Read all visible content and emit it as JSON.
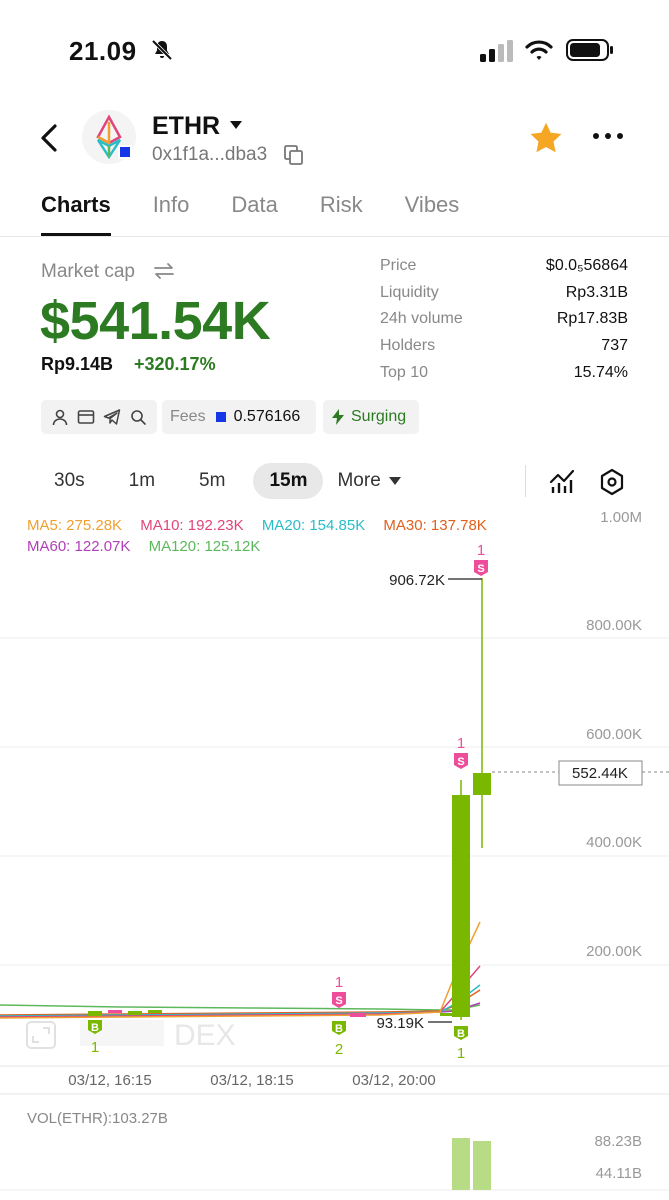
{
  "status": {
    "time": "21.09",
    "icons": [
      "bell-off-icon",
      "signal-icon",
      "wifi-icon",
      "battery-icon"
    ]
  },
  "header": {
    "token_name": "ETHR",
    "address": "0x1f1a...dba3",
    "favorite_color": "#f5a623"
  },
  "tabs": [
    {
      "label": "Charts",
      "active": true
    },
    {
      "label": "Info"
    },
    {
      "label": "Data"
    },
    {
      "label": "Risk"
    },
    {
      "label": "Vibes"
    }
  ],
  "market": {
    "label": "Market cap",
    "value": "$541.54K",
    "idr": "Rp9.14B",
    "change": "+320.17%",
    "accent": "#2c7a21"
  },
  "stats": [
    {
      "label": "Price",
      "value": "$0.0₅56864"
    },
    {
      "label": "Liquidity",
      "value": "Rp3.31B"
    },
    {
      "label": "24h volume",
      "value": "Rp17.83B"
    },
    {
      "label": "Holders",
      "value": "737"
    },
    {
      "label": "Top 10",
      "value": "15.74%"
    }
  ],
  "fees": {
    "label": "Fees",
    "value": "0.576166"
  },
  "surging": {
    "label": "Surging"
  },
  "intervals": [
    "30s",
    "1m",
    "5m",
    "15m"
  ],
  "active_interval": "15m",
  "more_label": "More",
  "ma": [
    {
      "label": "MA5: 275.28K",
      "color": "#f0a030"
    },
    {
      "label": "MA10: 192.23K",
      "color": "#e0457b"
    },
    {
      "label": "MA20: 154.85K",
      "color": "#2bbcc8"
    },
    {
      "label": "MA30: 137.78K",
      "color": "#e0601e"
    },
    {
      "label": "MA60: 122.07K",
      "color": "#b040b8"
    },
    {
      "label": "MA120: 125.12K",
      "color": "#5cb85c"
    }
  ],
  "chart_data": {
    "type": "candlestick",
    "y_ticks": [
      "1.00M",
      "800.00K",
      "600.00K",
      "400.00K",
      "200.00K"
    ],
    "x_ticks": [
      "03/12, 16:15",
      "03/12, 18:15",
      "03/12, 20:00"
    ],
    "high_label": "906.72K",
    "low_label": "93.19K",
    "current_price_label": "552.44K",
    "watermark": "DEX",
    "trade_markers": [
      {
        "type": "B",
        "count": "1"
      },
      {
        "type": "S",
        "count": "1"
      },
      {
        "type": "B",
        "count": "2"
      },
      {
        "type": "S",
        "count": "1"
      },
      {
        "type": "B",
        "count": "1"
      },
      {
        "type": "S",
        "count": "1"
      }
    ],
    "volume_label": "VOL(ETHR):103.27B",
    "volume_ticks": [
      "88.23B",
      "44.11B"
    ],
    "up_color": "#7ab800",
    "sell_color": "#ee4d9b"
  }
}
